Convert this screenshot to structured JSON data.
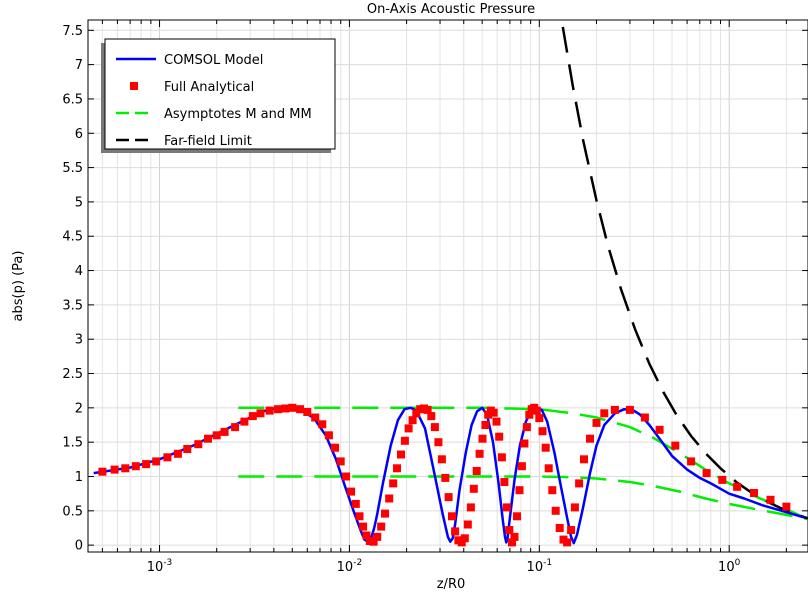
{
  "chart_data": {
    "type": "line",
    "title": "On-Axis Acoustic Pressure",
    "xlabel": "z/R0",
    "ylabel": "abs(p) (Pa)",
    "xscale": "log",
    "xlim": [
      0.00042,
      2.6
    ],
    "ylim": [
      -0.1,
      7.65
    ],
    "x_ticks": [
      {
        "value": 0.001,
        "base": "10",
        "exp": "-3"
      },
      {
        "value": 0.01,
        "base": "10",
        "exp": "-2"
      },
      {
        "value": 0.1,
        "base": "10",
        "exp": "-1"
      },
      {
        "value": 1,
        "base": "10",
        "exp": "0"
      }
    ],
    "y_ticks": [
      "0",
      "0.5",
      "1",
      "1.5",
      "2",
      "2.5",
      "3",
      "3.5",
      "4",
      "4.5",
      "5",
      "5.5",
      "6",
      "6.5",
      "7",
      "7.5"
    ],
    "grid": true,
    "legend_position": "top-left",
    "legend": [
      {
        "label": "COMSOL Model",
        "color": "#0000ff",
        "style": "solid-line"
      },
      {
        "label": "Full Analytical",
        "color": "#ff0000",
        "style": "square-marker"
      },
      {
        "label": "Asymptotes M and MM",
        "color": "#00ee00",
        "style": "dashed-line"
      },
      {
        "label": "Far-field Limit",
        "color": "#000000",
        "style": "dashed-line"
      }
    ],
    "series": [
      {
        "name": "COMSOL Model",
        "color": "#0000ff",
        "x": [
          0.00045,
          0.0007,
          0.001,
          0.0015,
          0.002,
          0.0028,
          0.0035,
          0.0042,
          0.0048,
          0.0055,
          0.0065,
          0.0075,
          0.0085,
          0.0095,
          0.0105,
          0.0115,
          0.012,
          0.0125,
          0.013,
          0.0135,
          0.014,
          0.015,
          0.0165,
          0.018,
          0.0195,
          0.021,
          0.0225,
          0.025,
          0.028,
          0.031,
          0.033,
          0.034,
          0.035,
          0.036,
          0.038,
          0.041,
          0.044,
          0.047,
          0.05,
          0.053,
          0.057,
          0.061,
          0.064,
          0.066,
          0.067,
          0.068,
          0.07,
          0.074,
          0.079,
          0.085,
          0.091,
          0.097,
          0.103,
          0.11,
          0.12,
          0.13,
          0.14,
          0.147,
          0.152,
          0.158,
          0.17,
          0.185,
          0.2,
          0.22,
          0.25,
          0.28,
          0.31,
          0.34,
          0.38,
          0.43,
          0.5,
          0.6,
          0.7,
          0.8,
          0.9,
          1.0,
          1.2,
          1.5,
          2.0,
          2.5
        ],
        "y": [
          1.05,
          1.13,
          1.25,
          1.45,
          1.62,
          1.82,
          1.95,
          2.0,
          2.0,
          1.97,
          1.85,
          1.6,
          1.25,
          0.85,
          0.5,
          0.2,
          0.08,
          0.05,
          0.1,
          0.25,
          0.45,
          0.9,
          1.45,
          1.82,
          1.98,
          2.0,
          1.96,
          1.7,
          1.05,
          0.45,
          0.12,
          0.05,
          0.1,
          0.3,
          0.8,
          1.35,
          1.75,
          1.95,
          2.0,
          1.9,
          1.5,
          0.9,
          0.4,
          0.12,
          0.04,
          0.1,
          0.4,
          0.95,
          1.45,
          1.8,
          1.97,
          2.0,
          1.97,
          1.8,
          1.35,
          0.85,
          0.4,
          0.12,
          0.03,
          0.15,
          0.55,
          1.05,
          1.45,
          1.75,
          1.92,
          1.98,
          1.97,
          1.9,
          1.75,
          1.55,
          1.3,
          1.1,
          0.98,
          0.9,
          0.82,
          0.75,
          0.68,
          0.58,
          0.48,
          0.4
        ]
      },
      {
        "name": "Full Analytical",
        "color": "#ff0000",
        "x": [
          0.0005,
          0.00058,
          0.00066,
          0.00075,
          0.00085,
          0.00096,
          0.0011,
          0.00125,
          0.0014,
          0.0016,
          0.0018,
          0.002,
          0.0022,
          0.0025,
          0.0028,
          0.0031,
          0.0034,
          0.0038,
          0.0042,
          0.0046,
          0.005,
          0.0055,
          0.006,
          0.0066,
          0.0072,
          0.0078,
          0.0084,
          0.009,
          0.0096,
          0.0102,
          0.0108,
          0.0113,
          0.0118,
          0.0123,
          0.0128,
          0.0134,
          0.014,
          0.0147,
          0.0154,
          0.0162,
          0.017,
          0.0178,
          0.0187,
          0.0196,
          0.0205,
          0.0215,
          0.0225,
          0.0236,
          0.0247,
          0.0258,
          0.027,
          0.0282,
          0.0294,
          0.0307,
          0.032,
          0.0333,
          0.0347,
          0.036,
          0.0375,
          0.039,
          0.0405,
          0.042,
          0.0436,
          0.0452,
          0.0468,
          0.0485,
          0.0502,
          0.052,
          0.0538,
          0.0556,
          0.0575,
          0.0595,
          0.0615,
          0.0635,
          0.0655,
          0.0675,
          0.0695,
          0.0718,
          0.074,
          0.0763,
          0.0786,
          0.081,
          0.0835,
          0.086,
          0.0886,
          0.0912,
          0.094,
          0.097,
          0.1,
          0.104,
          0.108,
          0.112,
          0.117,
          0.122,
          0.128,
          0.134,
          0.14,
          0.147,
          0.154,
          0.162,
          0.172,
          0.185,
          0.2,
          0.22,
          0.25,
          0.3,
          0.36,
          0.43,
          0.52,
          0.63,
          0.76,
          0.92,
          1.1,
          1.35,
          1.65,
          2.0
        ],
        "y": [
          1.07,
          1.1,
          1.12,
          1.15,
          1.18,
          1.22,
          1.28,
          1.33,
          1.4,
          1.47,
          1.55,
          1.6,
          1.65,
          1.72,
          1.8,
          1.88,
          1.92,
          1.96,
          1.98,
          1.99,
          2.0,
          1.98,
          1.94,
          1.86,
          1.76,
          1.6,
          1.42,
          1.22,
          1.0,
          0.78,
          0.6,
          0.42,
          0.27,
          0.14,
          0.06,
          0.05,
          0.12,
          0.27,
          0.46,
          0.68,
          0.9,
          1.12,
          1.32,
          1.52,
          1.7,
          1.82,
          1.92,
          1.98,
          1.99,
          1.97,
          1.88,
          1.72,
          1.5,
          1.25,
          0.98,
          0.7,
          0.42,
          0.2,
          0.07,
          0.04,
          0.1,
          0.3,
          0.55,
          0.82,
          1.08,
          1.33,
          1.55,
          1.75,
          1.9,
          1.96,
          1.93,
          1.8,
          1.58,
          1.28,
          0.92,
          0.55,
          0.22,
          0.04,
          0.12,
          0.42,
          0.8,
          1.15,
          1.48,
          1.72,
          1.9,
          1.98,
          2.0,
          1.96,
          1.85,
          1.66,
          1.42,
          1.12,
          0.8,
          0.5,
          0.25,
          0.08,
          0.04,
          0.22,
          0.55,
          0.9,
          1.25,
          1.55,
          1.78,
          1.92,
          1.97,
          1.97,
          1.86,
          1.68,
          1.45,
          1.22,
          1.05,
          0.95,
          0.85,
          0.76,
          0.66,
          0.56
        ]
      },
      {
        "name": "Asymptotes M and MM",
        "color": "#00ee00",
        "lines": [
          {
            "x": [
              0.0026,
              0.01,
              0.05,
              0.1,
              0.15,
              0.2,
              0.3,
              0.4,
              0.55,
              0.75,
              1.0,
              1.4,
              2.0,
              2.6
            ],
            "y": [
              2.0,
              2.0,
              2.0,
              1.98,
              1.92,
              1.86,
              1.72,
              1.56,
              1.34,
              1.1,
              0.9,
              0.7,
              0.52,
              0.38
            ]
          },
          {
            "x": [
              0.0026,
              0.01,
              0.05,
              0.1,
              0.15,
              0.2,
              0.3,
              0.4,
              0.55,
              0.75,
              1.0,
              1.4,
              2.0,
              2.6
            ],
            "y": [
              1.0,
              1.0,
              1.0,
              1.0,
              0.99,
              0.97,
              0.92,
              0.86,
              0.78,
              0.68,
              0.6,
              0.52,
              0.44,
              0.38
            ]
          }
        ]
      },
      {
        "name": "Far-field Limit",
        "color": "#000000",
        "x": [
          0.133,
          0.15,
          0.17,
          0.2,
          0.23,
          0.27,
          0.32,
          0.38,
          0.45,
          0.53,
          0.63,
          0.75,
          0.9,
          1.1,
          1.35,
          1.65,
          2.0,
          2.6
        ],
        "y": [
          7.55,
          6.69,
          5.9,
          5.02,
          4.36,
          3.72,
          3.14,
          2.64,
          2.23,
          1.89,
          1.59,
          1.34,
          1.12,
          0.91,
          0.74,
          0.61,
          0.5,
          0.39
        ]
      }
    ]
  }
}
